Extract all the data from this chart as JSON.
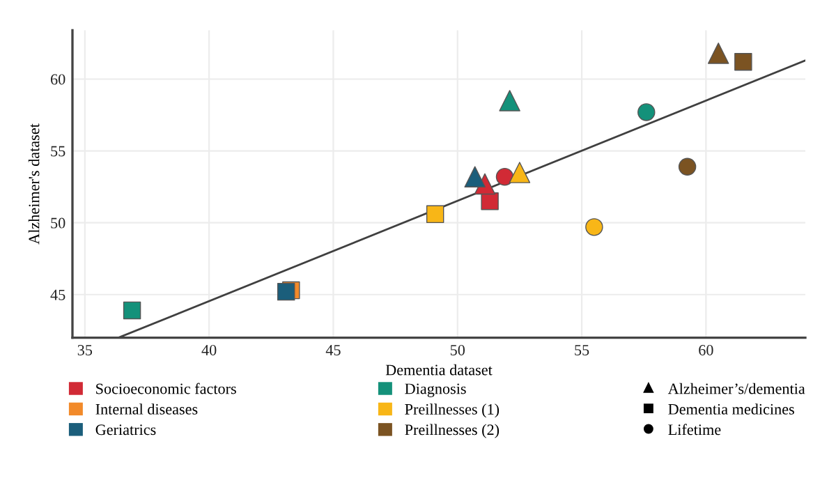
{
  "chart_data": {
    "type": "scatter",
    "xlabel": "Dementia dataset",
    "ylabel": "Alzheimer's dataset",
    "xlim": [
      34.5,
      64
    ],
    "ylim": [
      42,
      63.4
    ],
    "xticks": [
      35,
      40,
      45,
      50,
      55,
      60
    ],
    "yticks": [
      45,
      50,
      55,
      60
    ],
    "grid": true,
    "legend": "bottom",
    "series": [
      {
        "name": "Socioeconomic factors",
        "color": "#d12a35",
        "marker": "square",
        "x": [
          51.3
        ],
        "values": [
          51.5
        ]
      },
      {
        "color": "#d12a35",
        "marker": "triangle",
        "x": [
          51.1
        ],
        "values": [
          52.7
        ]
      },
      {
        "color": "#d12a35",
        "marker": "circle",
        "x": [
          51.9
        ],
        "values": [
          53.2
        ]
      },
      {
        "name": "Internal diseases",
        "color": "#f28a2a",
        "marker": "square",
        "x": [
          43.3
        ],
        "values": [
          45.3
        ]
      },
      {
        "name": "Geriatrics",
        "color": "#1b5e7b",
        "marker": "square",
        "x": [
          43.1
        ],
        "values": [
          45.2
        ]
      },
      {
        "color": "#1b5e7b",
        "marker": "triangle",
        "x": [
          50.7
        ],
        "values": [
          53.2
        ]
      },
      {
        "name": "Diagnosis",
        "color": "#14917a",
        "marker": "square",
        "x": [
          36.9
        ],
        "values": [
          43.9
        ]
      },
      {
        "color": "#14917a",
        "marker": "triangle",
        "x": [
          52.1
        ],
        "values": [
          58.5
        ]
      },
      {
        "color": "#14917a",
        "marker": "circle",
        "x": [
          57.6
        ],
        "values": [
          57.7
        ]
      },
      {
        "name": "Preillnesses (1)",
        "color": "#f8b617",
        "marker": "square",
        "x": [
          49.1
        ],
        "values": [
          50.6
        ]
      },
      {
        "color": "#f8b617",
        "marker": "triangle",
        "x": [
          52.5
        ],
        "values": [
          53.5
        ]
      },
      {
        "color": "#f8b617",
        "marker": "circle",
        "x": [
          55.5
        ],
        "values": [
          49.7
        ]
      },
      {
        "name": "Preillnesses (2)",
        "color": "#7b5322",
        "marker": "square",
        "x": [
          61.5
        ],
        "values": [
          61.2
        ]
      },
      {
        "color": "#7b5322",
        "marker": "triangle",
        "x": [
          60.5
        ],
        "values": [
          61.8
        ]
      },
      {
        "color": "#7b5322",
        "marker": "circle",
        "x": [
          59.25
        ],
        "values": [
          53.9
        ]
      },
      {
        "name": "Alzheimer’s/dementia",
        "color": "#000000",
        "marker": "triangle"
      },
      {
        "name": "Dementia medicines",
        "color": "#000000",
        "marker": "square"
      },
      {
        "name": "Lifetime",
        "color": "#000000",
        "marker": "circle"
      },
      {
        "type": "line",
        "color": "#404040",
        "x": [
          36.35,
          64
        ],
        "values": [
          42.0,
          61.3
        ]
      }
    ]
  }
}
